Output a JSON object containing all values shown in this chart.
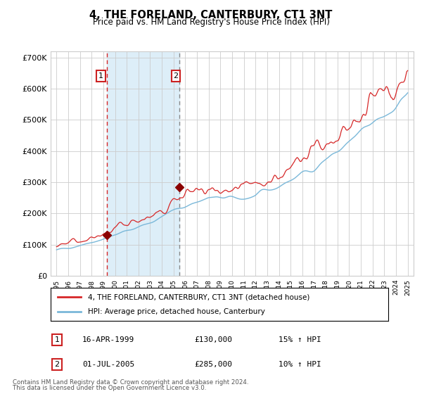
{
  "title": "4, THE FORELAND, CANTERBURY, CT1 3NT",
  "subtitle": "Price paid vs. HM Land Registry's House Price Index (HPI)",
  "legend_line1": "4, THE FORELAND, CANTERBURY, CT1 3NT (detached house)",
  "legend_line2": "HPI: Average price, detached house, Canterbury",
  "transaction1_date": "16-APR-1999",
  "transaction1_price": 130000,
  "transaction1_year": 1999.29,
  "transaction2_date": "01-JUL-2005",
  "transaction2_price": 285000,
  "transaction2_year": 2005.5,
  "transaction1_label": "15% ↑ HPI",
  "transaction2_label": "10% ↑ HPI",
  "footnote1": "Contains HM Land Registry data © Crown copyright and database right 2024.",
  "footnote2": "This data is licensed under the Open Government Licence v3.0.",
  "hpi_color": "#7ab8d9",
  "price_color": "#d62728",
  "marker_color": "#8b0000",
  "shading_color": "#ddeef8",
  "vline1_color": "#d62728",
  "vline2_color": "#888888",
  "grid_color": "#cccccc",
  "background_color": "#ffffff",
  "ylim": [
    0,
    720000
  ],
  "yticks": [
    0,
    100000,
    200000,
    300000,
    400000,
    500000,
    600000,
    700000
  ],
  "ytick_labels": [
    "£0",
    "£100K",
    "£200K",
    "£300K",
    "£400K",
    "£500K",
    "£600K",
    "£700K"
  ],
  "xlim_left": 1994.5,
  "xlim_right": 2025.5
}
